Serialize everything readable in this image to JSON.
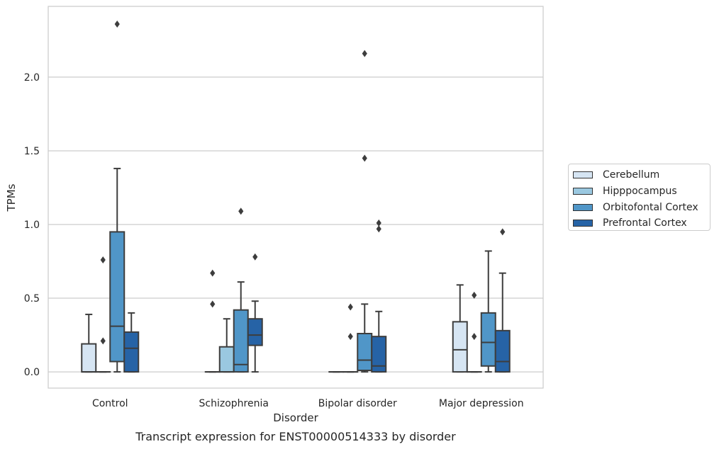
{
  "chart_data": {
    "type": "box",
    "caption": "Transcript expression for ENST00000514333 by disorder",
    "xlabel": "Disorder",
    "ylabel": "TPMs",
    "ylim": [
      -0.11,
      2.48
    ],
    "yticks": [
      0.0,
      0.5,
      1.0,
      1.5,
      2.0
    ],
    "ytick_labels": [
      "0.0",
      "0.5",
      "1.0",
      "1.5",
      "2.0"
    ],
    "grid": "horizontal",
    "legend_position": "right",
    "categories": [
      "Control",
      "Schizophrenia",
      "Bipolar disorder",
      "Major depression"
    ],
    "series": [
      {
        "name": "Cerebellum",
        "color": "#d6e5f3",
        "boxes": [
          {
            "q1": 0.0,
            "median": 0.0,
            "q3": 0.19,
            "whisker_low": 0.0,
            "whisker_high": 0.39,
            "outliers": []
          },
          {
            "q1": 0.0,
            "median": 0.0,
            "q3": 0.0,
            "whisker_low": 0.0,
            "whisker_high": 0.0,
            "outliers": [
              0.46,
              0.67
            ]
          },
          {
            "q1": 0.0,
            "median": 0.0,
            "q3": 0.0,
            "whisker_low": 0.0,
            "whisker_high": 0.0,
            "outliers": []
          },
          {
            "q1": 0.0,
            "median": 0.15,
            "q3": 0.34,
            "whisker_low": 0.0,
            "whisker_high": 0.59,
            "outliers": []
          }
        ]
      },
      {
        "name": "Hipppocampus",
        "color": "#9ac8e0",
        "boxes": [
          {
            "q1": 0.0,
            "median": 0.0,
            "q3": 0.0,
            "whisker_low": 0.0,
            "whisker_high": 0.0,
            "outliers": [
              0.21,
              0.76
            ]
          },
          {
            "q1": 0.0,
            "median": 0.0,
            "q3": 0.17,
            "whisker_low": 0.0,
            "whisker_high": 0.36,
            "outliers": []
          },
          {
            "q1": 0.0,
            "median": 0.0,
            "q3": 0.0,
            "whisker_low": 0.0,
            "whisker_high": 0.0,
            "outliers": [
              0.24,
              0.44
            ]
          },
          {
            "q1": 0.0,
            "median": 0.0,
            "q3": 0.0,
            "whisker_low": 0.0,
            "whisker_high": 0.0,
            "outliers": [
              0.24,
              0.52
            ]
          }
        ]
      },
      {
        "name": "Orbitofontal Cortex",
        "color": "#5096c8",
        "boxes": [
          {
            "q1": 0.07,
            "median": 0.31,
            "q3": 0.95,
            "whisker_low": 0.0,
            "whisker_high": 1.38,
            "outliers": [
              2.36
            ]
          },
          {
            "q1": 0.0,
            "median": 0.05,
            "q3": 0.42,
            "whisker_low": 0.0,
            "whisker_high": 0.61,
            "outliers": [
              1.09
            ]
          },
          {
            "q1": 0.01,
            "median": 0.08,
            "q3": 0.26,
            "whisker_low": 0.0,
            "whisker_high": 0.46,
            "outliers": [
              1.45,
              2.16
            ]
          },
          {
            "q1": 0.04,
            "median": 0.2,
            "q3": 0.4,
            "whisker_low": 0.0,
            "whisker_high": 0.82,
            "outliers": []
          }
        ]
      },
      {
        "name": "Prefrontal Cortex",
        "color": "#2663a6",
        "boxes": [
          {
            "q1": 0.0,
            "median": 0.16,
            "q3": 0.27,
            "whisker_low": 0.0,
            "whisker_high": 0.4,
            "outliers": []
          },
          {
            "q1": 0.18,
            "median": 0.25,
            "q3": 0.36,
            "whisker_low": 0.0,
            "whisker_high": 0.48,
            "outliers": [
              0.78
            ]
          },
          {
            "q1": 0.0,
            "median": 0.04,
            "q3": 0.24,
            "whisker_low": 0.0,
            "whisker_high": 0.41,
            "outliers": [
              0.97,
              1.01
            ]
          },
          {
            "q1": 0.0,
            "median": 0.07,
            "q3": 0.28,
            "whisker_low": 0.0,
            "whisker_high": 0.67,
            "outliers": [
              0.95
            ]
          }
        ]
      }
    ]
  }
}
